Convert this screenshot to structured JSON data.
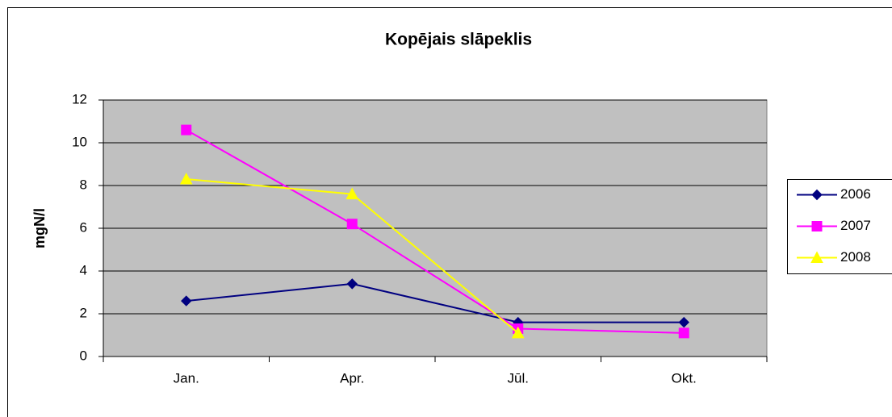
{
  "chart_data": {
    "type": "line",
    "title": "Kopējais slāpeklis",
    "y_label": "mgN/l",
    "categories": [
      "Jan.",
      "Apr.",
      "Jūl.",
      "Okt."
    ],
    "series": [
      {
        "name": "2006",
        "color": "#000080",
        "marker": "diamond",
        "values": [
          2.6,
          3.4,
          1.6,
          1.6
        ]
      },
      {
        "name": "2007",
        "color": "#ff00ff",
        "marker": "square",
        "values": [
          10.6,
          6.2,
          1.3,
          1.1
        ]
      },
      {
        "name": "2008",
        "color": "#ffff00",
        "marker": "triangle",
        "values": [
          8.3,
          7.6,
          1.1,
          null
        ]
      }
    ],
    "ylim": [
      0,
      12
    ],
    "yticks": [
      0,
      2,
      4,
      6,
      8,
      10,
      12
    ],
    "grid": true,
    "legend": "right",
    "plot_background": "#c0c0c0"
  }
}
